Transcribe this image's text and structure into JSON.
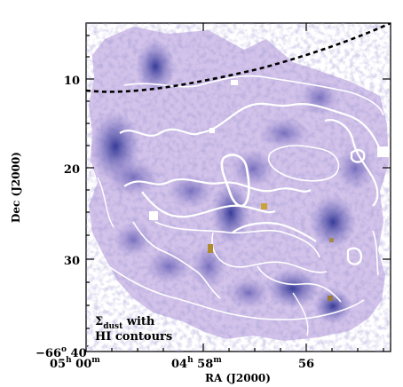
{
  "figure": {
    "annotation": {
      "line1_symbol": "Σ",
      "line1_subscript": "dust",
      "line1_rest": " with",
      "line2": "HI contours"
    },
    "x_axis": {
      "label": "RA (J2000)",
      "ticks": [
        {
          "main": "05",
          "sup1": "h",
          "mid": " 00",
          "sup2": "m"
        },
        {
          "main": "04",
          "sup1": "h",
          "mid": " 58",
          "sup2": "m"
        },
        {
          "main": "56",
          "sup1": "",
          "mid": "",
          "sup2": ""
        }
      ]
    },
    "y_axis": {
      "label": "Dec (J2000)",
      "ticks": [
        "10",
        "20",
        "30"
      ],
      "origin_label": {
        "deg": "−66",
        "deg_sup": "o",
        "min": " 40",
        "min_sup": "′"
      }
    },
    "colors": {
      "map_light": "#d8c8ec",
      "map_mid": "#b49ad8",
      "map_dark": "#3a3f9c",
      "contour": "#ffffff",
      "boundary_dash": "#000000",
      "hotspot": "#c9a23a"
    }
  }
}
